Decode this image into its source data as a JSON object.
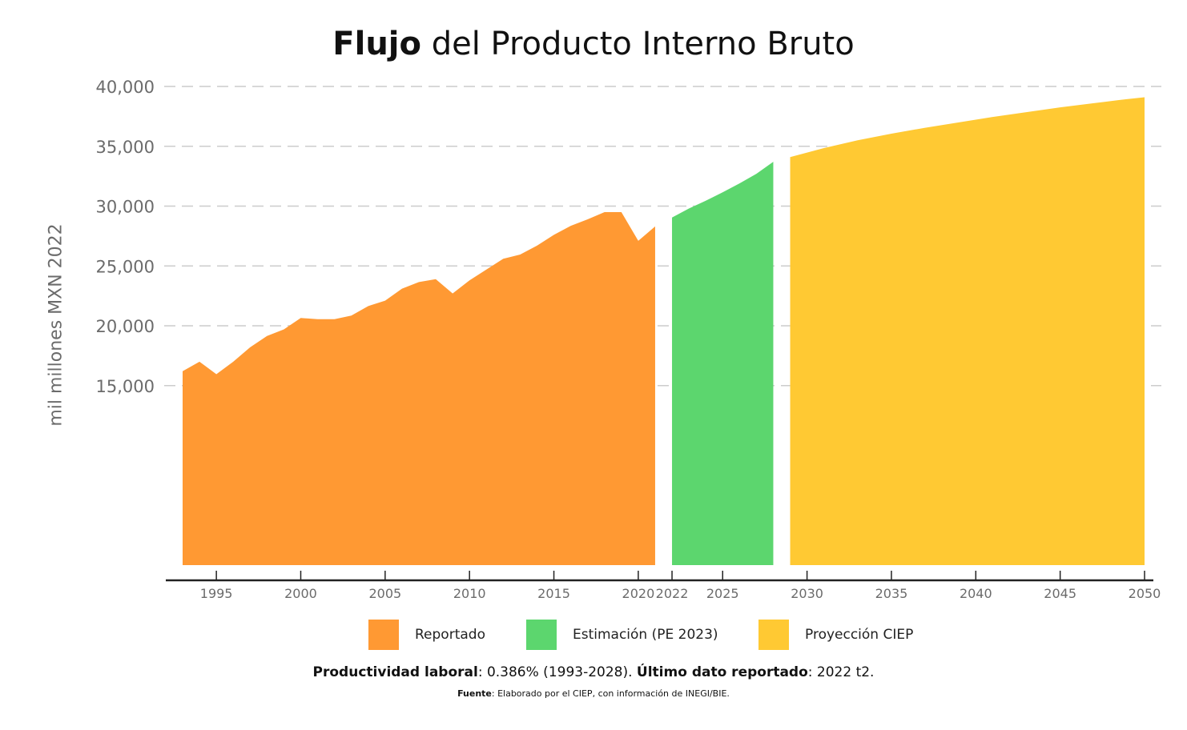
{
  "title": {
    "bold": "Flujo",
    "rest": " del Producto Interno Bruto"
  },
  "chart_data": {
    "type": "area",
    "title": "Flujo del Producto Interno Bruto",
    "ylabel": "mil millones MXN 2022",
    "xlabel": "",
    "ylim": [
      0,
      40000
    ],
    "yticks": [
      15000,
      20000,
      25000,
      30000,
      35000,
      40000
    ],
    "ytick_labels": [
      "15,000",
      "20,000",
      "25,000",
      "30,000",
      "35,000",
      "40,000"
    ],
    "xticks": [
      1995,
      2000,
      2005,
      2010,
      2015,
      2020,
      2022,
      2025,
      2030,
      2035,
      2040,
      2045,
      2050
    ],
    "grid": "horizontal dashed",
    "legend_position": "bottom",
    "series": [
      {
        "name": "Reportado",
        "color": "#FF9933",
        "x": [
          1993,
          1994,
          1995,
          1996,
          1997,
          1998,
          1999,
          2000,
          2001,
          2002,
          2003,
          2004,
          2005,
          2006,
          2007,
          2008,
          2009,
          2010,
          2011,
          2012,
          2013,
          2014,
          2015,
          2016,
          2017,
          2018,
          2019,
          2020,
          2021
        ],
        "values": [
          16200,
          17000,
          15950,
          17000,
          18200,
          19150,
          19700,
          20650,
          20550,
          20550,
          20850,
          21650,
          22100,
          23100,
          23650,
          23900,
          22700,
          23800,
          24700,
          25600,
          25950,
          26700,
          27600,
          28350,
          28900,
          29500,
          29500,
          27100,
          28300
        ]
      },
      {
        "name": "Estimación (PE 2023)",
        "color": "#5CD66E",
        "x": [
          2022,
          2023,
          2024,
          2025,
          2026,
          2027,
          2028
        ],
        "values": [
          29050,
          29800,
          30450,
          31150,
          31900,
          32700,
          33700
        ]
      },
      {
        "name": "Proyección CIEP",
        "color": "#FFC933",
        "x": [
          2029,
          2031,
          2033,
          2035,
          2037,
          2039,
          2041,
          2043,
          2045,
          2047,
          2049,
          2050
        ],
        "values": [
          34100,
          34850,
          35500,
          36050,
          36550,
          37000,
          37450,
          37850,
          38250,
          38600,
          38950,
          39100
        ]
      }
    ]
  },
  "notes": {
    "productividad_label": "Productividad laboral",
    "productividad_value": ": 0.386% (1993-2028). ",
    "ultimo_label": "Último dato reportado",
    "ultimo_value": ": 2022 t2.",
    "fuente_label": "Fuente",
    "fuente_value": ": Elaborado por el CIEP, con información de INEGI/BIE."
  }
}
